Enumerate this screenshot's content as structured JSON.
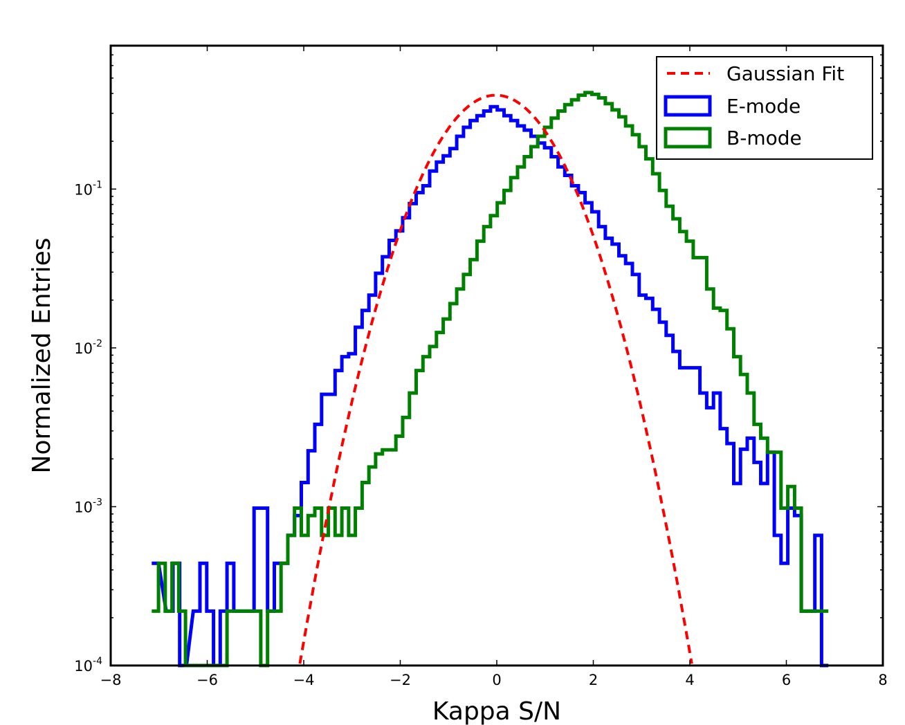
{
  "chart_data": {
    "type": "histogram-step",
    "title": "",
    "xlabel": "Kappa S/N",
    "ylabel": "Normalized Entries",
    "xlim": [
      -8,
      8
    ],
    "ylim": [
      0.0001,
      0.8
    ],
    "yscale": "log",
    "xticks": [
      -8,
      -6,
      -4,
      -2,
      0,
      2,
      4,
      6,
      8
    ],
    "xtick_labels": [
      "−8",
      "−6",
      "−4",
      "−2",
      "0",
      "2",
      "4",
      "6",
      "8"
    ],
    "yticks": [
      {
        "value": 0.1,
        "base": "10",
        "exp": "-1"
      },
      {
        "value": 0.01,
        "base": "10",
        "exp": "-2"
      },
      {
        "value": 0.001,
        "base": "10",
        "exp": "-3"
      },
      {
        "value": 0.0001,
        "base": "10",
        "exp": "-4"
      }
    ],
    "grid": false,
    "legend_position": "top-right",
    "bin_width": 0.14,
    "series": [
      {
        "name": "Gaussian Fit",
        "kind": "line",
        "style": "dashed",
        "color": "#ff0000",
        "mu": -0.02,
        "sigma": 1.0,
        "peak": 0.39
      },
      {
        "name": "E-mode",
        "kind": "step",
        "color": "#0000ff",
        "points": [
          [
            -7.08,
            0.00044
          ],
          [
            -6.78,
            0.00022
          ],
          [
            -6.64,
            0.00044
          ],
          [
            -6.5,
            0.0001
          ],
          [
            -6.22,
            0.00022
          ],
          [
            -6.08,
            0.00044
          ],
          [
            -5.94,
            0.00022
          ],
          [
            -5.8,
            0.0001
          ],
          [
            -5.66,
            0.00022
          ],
          [
            -5.52,
            0.00044
          ],
          [
            -5.38,
            0.00022
          ],
          [
            -5.1,
            0.00022
          ],
          [
            -4.96,
            0.00098
          ],
          [
            -4.82,
            0.00098
          ],
          [
            -4.68,
            0.00022
          ],
          [
            -4.54,
            0.00044
          ],
          [
            -4.4,
            0.00044
          ],
          [
            -4.26,
            0.00066
          ],
          [
            -4.12,
            0.00088
          ],
          [
            -3.98,
            0.00142
          ],
          [
            -3.84,
            0.00225
          ],
          [
            -3.7,
            0.0033
          ],
          [
            -3.56,
            0.0051
          ],
          [
            -3.42,
            0.0051
          ],
          [
            -3.28,
            0.0072
          ],
          [
            -3.14,
            0.0088
          ],
          [
            -3.0,
            0.0092
          ],
          [
            -2.86,
            0.0135
          ],
          [
            -2.72,
            0.0172
          ],
          [
            -2.58,
            0.0215
          ],
          [
            -2.44,
            0.0295
          ],
          [
            -2.3,
            0.0375
          ],
          [
            -2.16,
            0.0475
          ],
          [
            -2.02,
            0.0545
          ],
          [
            -1.88,
            0.066
          ],
          [
            -1.74,
            0.081
          ],
          [
            -1.6,
            0.095
          ],
          [
            -1.46,
            0.105
          ],
          [
            -1.32,
            0.13
          ],
          [
            -1.18,
            0.148
          ],
          [
            -1.04,
            0.162
          ],
          [
            -0.9,
            0.18
          ],
          [
            -0.76,
            0.215
          ],
          [
            -0.62,
            0.245
          ],
          [
            -0.48,
            0.27
          ],
          [
            -0.34,
            0.29
          ],
          [
            -0.2,
            0.31
          ],
          [
            -0.06,
            0.33
          ],
          [
            0.08,
            0.315
          ],
          [
            0.22,
            0.29
          ],
          [
            0.36,
            0.27
          ],
          [
            0.5,
            0.25
          ],
          [
            0.64,
            0.235
          ],
          [
            0.78,
            0.215
          ],
          [
            0.92,
            0.195
          ],
          [
            1.06,
            0.182
          ],
          [
            1.2,
            0.16
          ],
          [
            1.34,
            0.138
          ],
          [
            1.48,
            0.122
          ],
          [
            1.62,
            0.105
          ],
          [
            1.76,
            0.095
          ],
          [
            1.9,
            0.082
          ],
          [
            2.04,
            0.072
          ],
          [
            2.18,
            0.058
          ],
          [
            2.32,
            0.049
          ],
          [
            2.46,
            0.045
          ],
          [
            2.6,
            0.038
          ],
          [
            2.74,
            0.034
          ],
          [
            2.88,
            0.029
          ],
          [
            3.02,
            0.0215
          ],
          [
            3.16,
            0.0205
          ],
          [
            3.3,
            0.0175
          ],
          [
            3.44,
            0.0145
          ],
          [
            3.58,
            0.012
          ],
          [
            3.72,
            0.0095
          ],
          [
            3.86,
            0.0075
          ],
          [
            4.0,
            0.0075
          ],
          [
            4.14,
            0.0075
          ],
          [
            4.28,
            0.0052
          ],
          [
            4.42,
            0.0042
          ],
          [
            4.56,
            0.0052
          ],
          [
            4.7,
            0.0031
          ],
          [
            4.84,
            0.0025
          ],
          [
            4.98,
            0.0014
          ],
          [
            5.12,
            0.0023
          ],
          [
            5.26,
            0.0027
          ],
          [
            5.4,
            0.0019
          ],
          [
            5.54,
            0.0014
          ],
          [
            5.68,
            0.0022
          ],
          [
            5.82,
            0.00066
          ],
          [
            5.96,
            0.00044
          ],
          [
            6.1,
            0.00098
          ],
          [
            6.24,
            0.00088
          ],
          [
            6.38,
            0.00022
          ],
          [
            6.52,
            0.00022
          ],
          [
            6.66,
            0.00066
          ],
          [
            6.8,
            0.0001
          ]
        ]
      },
      {
        "name": "B-mode",
        "kind": "step",
        "color": "#008000",
        "points": [
          [
            -7.08,
            0.00022
          ],
          [
            -6.94,
            0.00044
          ],
          [
            -6.8,
            0.00022
          ],
          [
            -6.66,
            0.00044
          ],
          [
            -6.52,
            0.00022
          ],
          [
            -6.38,
            0.0001
          ],
          [
            -6.24,
            0.0001
          ],
          [
            -6.1,
            0.0001
          ],
          [
            -5.96,
            0.0001
          ],
          [
            -5.82,
            0.0001
          ],
          [
            -5.66,
            0.0001
          ],
          [
            -5.52,
            0.00022
          ],
          [
            -5.24,
            0.00022
          ],
          [
            -5.1,
            0.00022
          ],
          [
            -4.96,
            0.00022
          ],
          [
            -4.82,
            0.0001
          ],
          [
            -4.68,
            0.00022
          ],
          [
            -4.54,
            0.00022
          ],
          [
            -4.4,
            0.00044
          ],
          [
            -4.26,
            0.00066
          ],
          [
            -4.12,
            0.00098
          ],
          [
            -3.98,
            0.00066
          ],
          [
            -3.84,
            0.00088
          ],
          [
            -3.7,
            0.00098
          ],
          [
            -3.56,
            0.00066
          ],
          [
            -3.42,
            0.00098
          ],
          [
            -3.28,
            0.00066
          ],
          [
            -3.14,
            0.00098
          ],
          [
            -3.0,
            0.00066
          ],
          [
            -2.86,
            0.00098
          ],
          [
            -2.72,
            0.00142
          ],
          [
            -2.58,
            0.00178
          ],
          [
            -2.44,
            0.00215
          ],
          [
            -2.3,
            0.00228
          ],
          [
            -2.16,
            0.00228
          ],
          [
            -2.02,
            0.00278
          ],
          [
            -1.88,
            0.00365
          ],
          [
            -1.74,
            0.0052
          ],
          [
            -1.6,
            0.0072
          ],
          [
            -1.46,
            0.0088
          ],
          [
            -1.32,
            0.0102
          ],
          [
            -1.18,
            0.0125
          ],
          [
            -1.04,
            0.0152
          ],
          [
            -0.9,
            0.019
          ],
          [
            -0.76,
            0.0235
          ],
          [
            -0.62,
            0.029
          ],
          [
            -0.48,
            0.036
          ],
          [
            -0.34,
            0.047
          ],
          [
            -0.2,
            0.058
          ],
          [
            -0.06,
            0.068
          ],
          [
            0.08,
            0.082
          ],
          [
            0.22,
            0.098
          ],
          [
            0.36,
            0.118
          ],
          [
            0.5,
            0.138
          ],
          [
            0.64,
            0.16
          ],
          [
            0.78,
            0.185
          ],
          [
            0.92,
            0.215
          ],
          [
            1.06,
            0.245
          ],
          [
            1.2,
            0.28
          ],
          [
            1.34,
            0.31
          ],
          [
            1.48,
            0.34
          ],
          [
            1.62,
            0.365
          ],
          [
            1.76,
            0.39
          ],
          [
            1.9,
            0.405
          ],
          [
            2.04,
            0.395
          ],
          [
            2.18,
            0.375
          ],
          [
            2.32,
            0.345
          ],
          [
            2.46,
            0.315
          ],
          [
            2.6,
            0.285
          ],
          [
            2.74,
            0.25
          ],
          [
            2.88,
            0.22
          ],
          [
            3.02,
            0.185
          ],
          [
            3.16,
            0.155
          ],
          [
            3.3,
            0.125
          ],
          [
            3.44,
            0.098
          ],
          [
            3.58,
            0.078
          ],
          [
            3.72,
            0.065
          ],
          [
            3.86,
            0.054
          ],
          [
            4.0,
            0.047
          ],
          [
            4.14,
            0.037
          ],
          [
            4.28,
            0.037
          ],
          [
            4.42,
            0.0235
          ],
          [
            4.56,
            0.0178
          ],
          [
            4.7,
            0.0172
          ],
          [
            4.84,
            0.0132
          ],
          [
            4.98,
            0.0088
          ],
          [
            5.12,
            0.0068
          ],
          [
            5.26,
            0.0052
          ],
          [
            5.4,
            0.0033
          ],
          [
            5.54,
            0.0027
          ],
          [
            5.68,
            0.0022
          ],
          [
            5.82,
            0.0022
          ],
          [
            5.96,
            0.00098
          ],
          [
            6.1,
            0.00134
          ],
          [
            6.24,
            0.00098
          ],
          [
            6.38,
            0.00022
          ],
          [
            6.52,
            0.00022
          ],
          [
            6.66,
            0.00022
          ],
          [
            6.8,
            0.00022
          ]
        ]
      }
    ]
  }
}
